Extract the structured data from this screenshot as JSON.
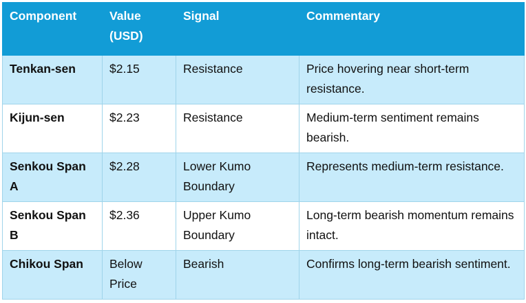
{
  "table": {
    "headers": [
      "Component",
      "Value (USD)",
      "Signal",
      "Commentary"
    ],
    "rows": [
      {
        "component": "Tenkan-sen",
        "value": "$2.15",
        "signal": "Resistance",
        "commentary": "Price hovering near short-term resistance."
      },
      {
        "component": "Kijun-sen",
        "value": "$2.23",
        "signal": "Resistance",
        "commentary": "Medium-term sentiment remains bearish."
      },
      {
        "component": "Senkou Span A",
        "value": "$2.28",
        "signal": "Lower Kumo Boundary",
        "commentary": "Represents medium-term resistance."
      },
      {
        "component": "Senkou Span B",
        "value": "$2.36",
        "signal": "Upper Kumo Boundary",
        "commentary": "Long-term bearish momentum remains intact."
      },
      {
        "component": "Chikou Span",
        "value": "Below Price",
        "signal": "Bearish",
        "commentary": "Confirms long-term bearish sentiment."
      }
    ]
  },
  "colors": {
    "header_bg": "#129cd6",
    "header_text": "#ffffff",
    "band_row": "#c7ebfb",
    "plain_row": "#ffffff",
    "border": "#9fd4ea"
  }
}
